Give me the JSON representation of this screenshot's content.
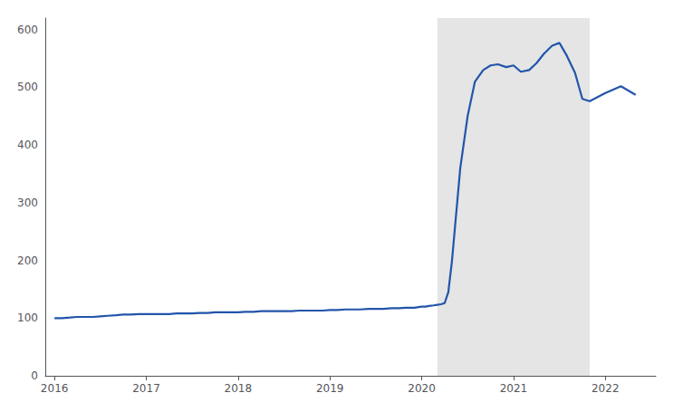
{
  "chart_data": {
    "type": "line",
    "x": [
      2016.0,
      2016.08,
      2016.17,
      2016.25,
      2016.33,
      2016.42,
      2016.5,
      2016.58,
      2016.67,
      2016.75,
      2016.83,
      2016.92,
      2017.0,
      2017.08,
      2017.17,
      2017.25,
      2017.33,
      2017.42,
      2017.5,
      2017.58,
      2017.67,
      2017.75,
      2017.83,
      2017.92,
      2018.0,
      2018.08,
      2018.17,
      2018.25,
      2018.33,
      2018.42,
      2018.5,
      2018.58,
      2018.67,
      2018.75,
      2018.83,
      2018.92,
      2019.0,
      2019.08,
      2019.17,
      2019.25,
      2019.33,
      2019.42,
      2019.5,
      2019.58,
      2019.67,
      2019.75,
      2019.83,
      2019.92,
      2020.0,
      2020.04,
      2020.08,
      2020.13,
      2020.17,
      2020.21,
      2020.25,
      2020.29,
      2020.33,
      2020.42,
      2020.5,
      2020.58,
      2020.67,
      2020.75,
      2020.83,
      2020.92,
      2021.0,
      2021.08,
      2021.17,
      2021.25,
      2021.33,
      2021.42,
      2021.5,
      2021.58,
      2021.67,
      2021.75,
      2021.83,
      2022.0,
      2022.17,
      2022.33
    ],
    "values": [
      100,
      100,
      101,
      102,
      102,
      102,
      103,
      104,
      105,
      106,
      106,
      107,
      107,
      107,
      107,
      107,
      108,
      108,
      108,
      109,
      109,
      110,
      110,
      110,
      110,
      111,
      111,
      112,
      112,
      112,
      112,
      112,
      113,
      113,
      113,
      113,
      114,
      114,
      115,
      115,
      115,
      116,
      116,
      116,
      117,
      117,
      118,
      118,
      120,
      120,
      121,
      122,
      123,
      124,
      126,
      145,
      200,
      360,
      450,
      510,
      530,
      538,
      540,
      535,
      538,
      527,
      530,
      542,
      558,
      572,
      577,
      555,
      525,
      480,
      476,
      490,
      502,
      487
    ],
    "color": "#2255aa",
    "xlim": [
      2015.9,
      2022.55
    ],
    "xticks": [
      2016,
      2017,
      2018,
      2019,
      2020,
      2021,
      2022
    ],
    "ylim": [
      0,
      620
    ],
    "yticks": [
      0,
      100,
      200,
      300,
      400,
      500,
      600
    ],
    "grid": false,
    "shade": {
      "x": [
        2020.17,
        2021.83
      ],
      "color": "#d3d3d3"
    }
  }
}
